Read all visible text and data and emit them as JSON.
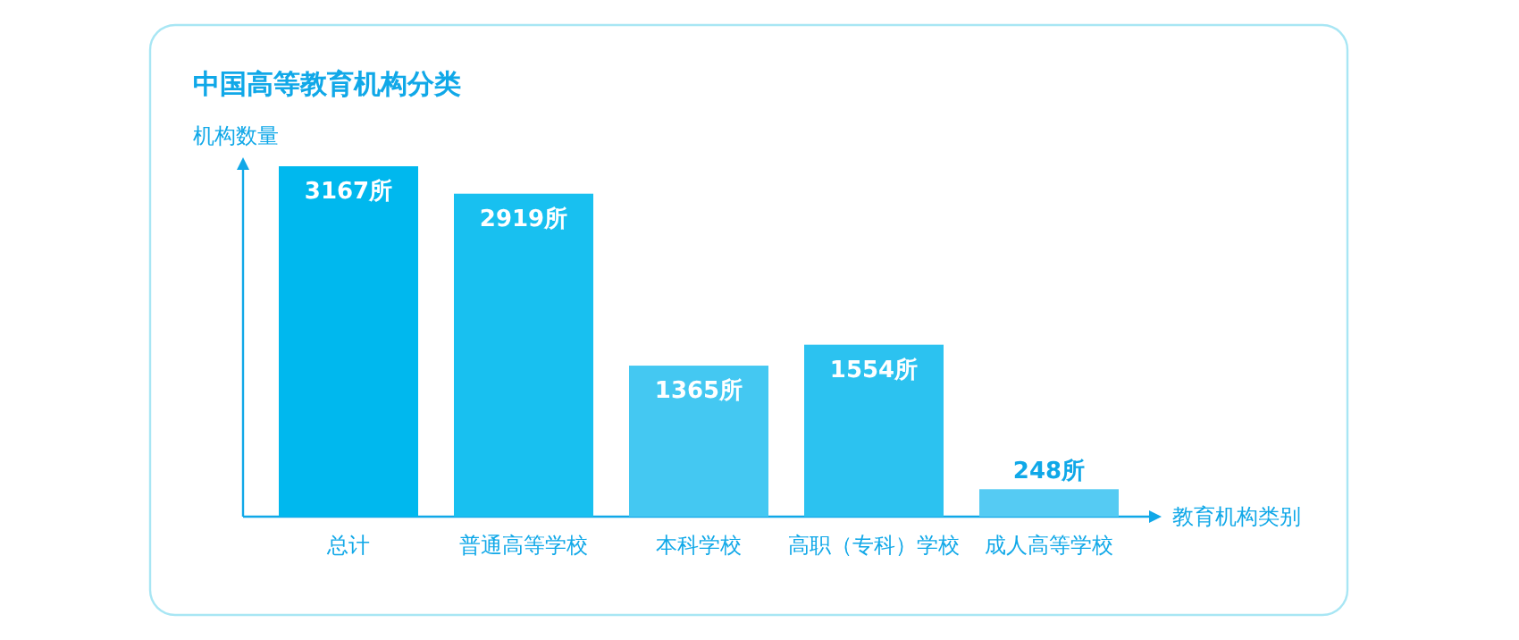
{
  "chart_data": {
    "type": "bar",
    "title": "中国高等教育机构分类",
    "ylabel": "机构数量",
    "xlabel": "教育机构类别",
    "categories": [
      "总计",
      "普通高等学校",
      "本科学校",
      "高职（专科）学校",
      "成人高等学校"
    ],
    "values": [
      3167,
      2919,
      1365,
      1554,
      248
    ],
    "value_labels": [
      "3167所",
      "2919所",
      "1365所",
      "1554所",
      "248所"
    ],
    "colors": [
      "#00b8ee",
      "#18c0f0",
      "#44c8f2",
      "#2cc2f0",
      "#55cbf3"
    ]
  }
}
